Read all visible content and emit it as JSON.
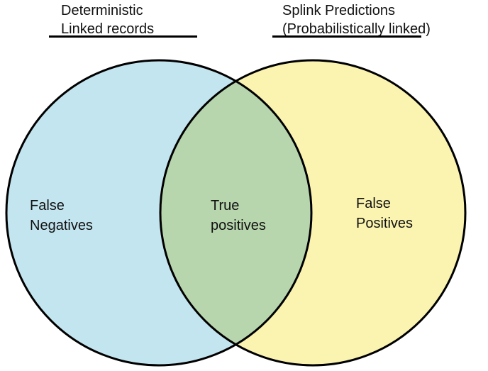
{
  "headers": {
    "left": {
      "line1": "Deterministic",
      "line2": "Linked records"
    },
    "right": {
      "line1": "Splink Predictions",
      "line2": "(Probabilistically linked)"
    }
  },
  "regions": {
    "left_only": {
      "line1": "False",
      "line2": "Negatives"
    },
    "overlap": {
      "line1": "True",
      "line2": "positives"
    },
    "right_only": {
      "line1": "False",
      "line2": "Positives"
    }
  },
  "colors": {
    "left_circle": "#c3e5ef",
    "right_circle": "#fbf4b0",
    "overlap": "#b8d6ad",
    "stroke": "#000000"
  }
}
